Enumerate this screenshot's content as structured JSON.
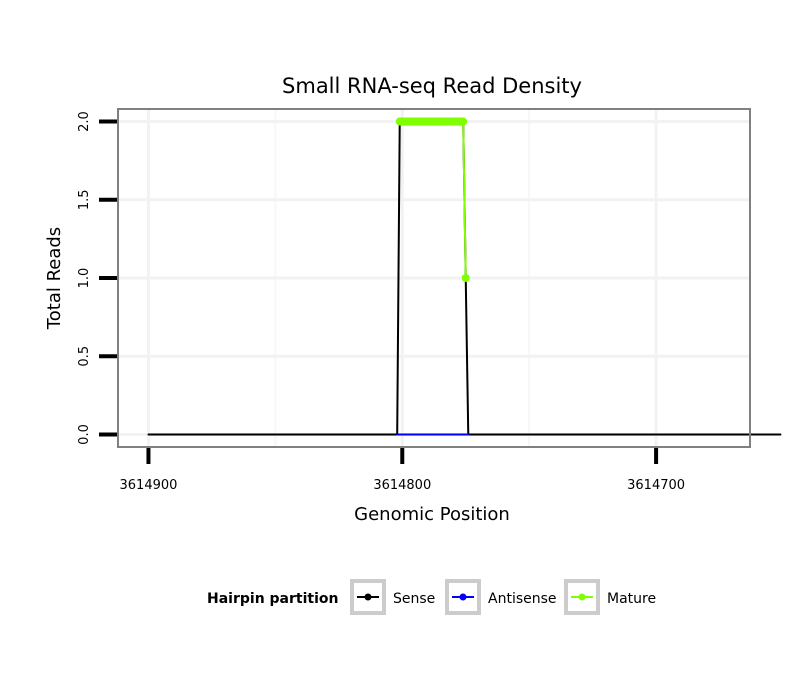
{
  "chart_data": {
    "type": "line",
    "title": "Small RNA-seq Read Density",
    "xlabel": "Genomic Position",
    "ylabel": "Total Reads",
    "xlim": [
      3614912,
      3614663
    ],
    "x_reversed": true,
    "ylim": [
      -0.08,
      2.08
    ],
    "x_ticks": [
      3614900,
      3614800,
      3614700
    ],
    "x_tick_labels": [
      "3614900",
      "3614800",
      "3614700"
    ],
    "y_ticks": [
      0.0,
      0.5,
      1.0,
      1.5,
      2.0
    ],
    "y_tick_labels": [
      "0.0",
      "0.5",
      "1.0",
      "1.5",
      "2.0"
    ],
    "grid": true,
    "series": [
      {
        "name": "Sense",
        "color": "#000000",
        "points": [
          [
            3614900,
            0
          ],
          [
            3614802,
            0
          ],
          [
            3614801,
            2
          ],
          [
            3614776,
            2
          ],
          [
            3614775,
            1
          ],
          [
            3614774,
            0
          ],
          [
            3614651,
            0
          ]
        ]
      },
      {
        "name": "Antisense",
        "color": "#0000ff",
        "points": [
          [
            3614802,
            0
          ],
          [
            3614774,
            0
          ]
        ]
      },
      {
        "name": "Mature",
        "color": "#7fff00",
        "points": [
          [
            3614801,
            2
          ],
          [
            3614800,
            2
          ],
          [
            3614799,
            2
          ],
          [
            3614798,
            2
          ],
          [
            3614797,
            2
          ],
          [
            3614796,
            2
          ],
          [
            3614795,
            2
          ],
          [
            3614794,
            2
          ],
          [
            3614793,
            2
          ],
          [
            3614792,
            2
          ],
          [
            3614791,
            2
          ],
          [
            3614790,
            2
          ],
          [
            3614789,
            2
          ],
          [
            3614788,
            2
          ],
          [
            3614787,
            2
          ],
          [
            3614786,
            2
          ],
          [
            3614785,
            2
          ],
          [
            3614784,
            2
          ],
          [
            3614783,
            2
          ],
          [
            3614782,
            2
          ],
          [
            3614781,
            2
          ],
          [
            3614780,
            2
          ],
          [
            3614779,
            2
          ],
          [
            3614778,
            2
          ],
          [
            3614777,
            2
          ],
          [
            3614776,
            2
          ],
          [
            3614775,
            1
          ]
        ]
      }
    ],
    "legend": {
      "title": "Hairpin partition",
      "position": "bottom",
      "entries": [
        "Sense",
        "Antisense",
        "Mature"
      ]
    }
  }
}
